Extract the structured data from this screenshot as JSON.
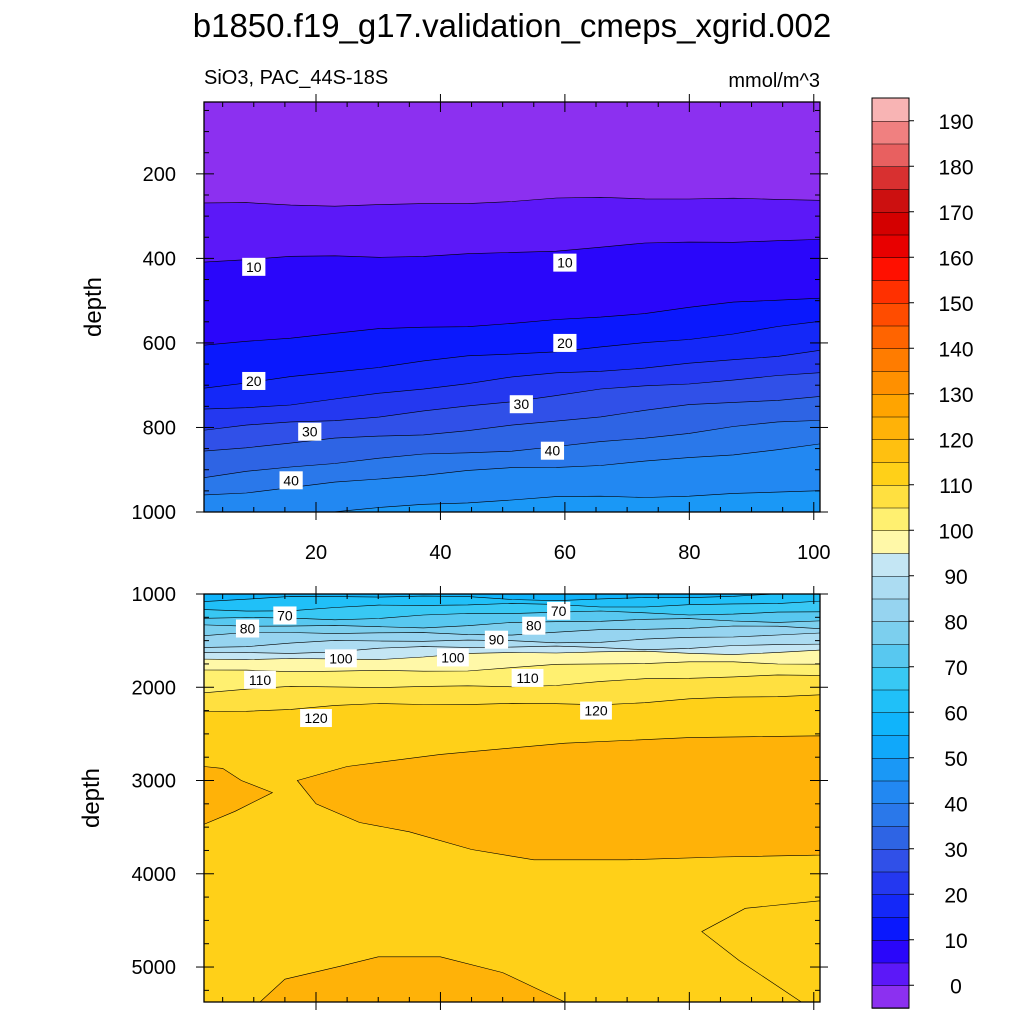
{
  "figure": {
    "title": "b1850.f19_g17.validation_cmeps_xgrid.002",
    "variable_label": "SiO3, PAC_44S-18S",
    "units_label": "mmol/m^3"
  },
  "chart_data": [
    {
      "type": "heatmap",
      "panel": "upper",
      "xlim": [
        2,
        101
      ],
      "ylim": [
        1000,
        30
      ],
      "ylabel": "depth",
      "x_ticks": [
        20,
        40,
        60,
        80,
        100
      ],
      "y_ticks": [
        200,
        400,
        600,
        800,
        1000
      ],
      "x_tick_labels": [
        "20",
        "40",
        "60",
        "80",
        "100"
      ],
      "y_tick_labels": [
        "200",
        "400",
        "600",
        "800",
        "1000"
      ],
      "contours": [
        {
          "level": 5,
          "depth_at_left": 275,
          "depth_at_right": 255
        },
        {
          "level": 10,
          "depth_at_left": 410,
          "depth_at_right": 355
        },
        {
          "level": 15,
          "depth_at_left": 605,
          "depth_at_right": 495
        },
        {
          "level": 20,
          "depth_at_left": 700,
          "depth_at_right": 555
        },
        {
          "level": 25,
          "depth_at_left": 760,
          "depth_at_right": 615
        },
        {
          "level": 30,
          "depth_at_left": 810,
          "depth_at_right": 665
        },
        {
          "level": 35,
          "depth_at_left": 860,
          "depth_at_right": 725
        },
        {
          "level": 40,
          "depth_at_left": 915,
          "depth_at_right": 785
        },
        {
          "level": 45,
          "depth_at_left": 955,
          "depth_at_right": 845
        },
        {
          "level": 50,
          "depth_at_left": 1005,
          "depth_at_right": 945
        }
      ],
      "contour_labels": [
        {
          "text": "10",
          "x": 10,
          "depth": 420
        },
        {
          "text": "10",
          "x": 60,
          "depth": 410
        },
        {
          "text": "20",
          "x": 60,
          "depth": 600
        },
        {
          "text": "20",
          "x": 10,
          "depth": 690
        },
        {
          "text": "30",
          "x": 53,
          "depth": 745
        },
        {
          "text": "30",
          "x": 19,
          "depth": 810
        },
        {
          "text": "40",
          "x": 58,
          "depth": 855
        },
        {
          "text": "40",
          "x": 16,
          "depth": 925
        }
      ]
    },
    {
      "type": "heatmap",
      "panel": "lower",
      "xlim": [
        2,
        101
      ],
      "ylim": [
        5375,
        1000
      ],
      "ylabel": "depth",
      "y_ticks": [
        1000,
        2000,
        3000,
        4000,
        5000
      ],
      "y_tick_labels": [
        "1000",
        "2000",
        "3000",
        "4000",
        "5000"
      ],
      "contours": [
        {
          "level": 65,
          "depth_at_left": 1050,
          "depth_at_right": 1030
        },
        {
          "level": 70,
          "depth_at_left": 1160,
          "depth_at_right": 1090
        },
        {
          "level": 75,
          "depth_at_left": 1260,
          "depth_at_right": 1180
        },
        {
          "level": 80,
          "depth_at_left": 1360,
          "depth_at_right": 1270
        },
        {
          "level": 85,
          "depth_at_left": 1450,
          "depth_at_right": 1360
        },
        {
          "level": 90,
          "depth_at_left": 1550,
          "depth_at_right": 1450
        },
        {
          "level": 95,
          "depth_at_left": 1620,
          "depth_at_right": 1540
        },
        {
          "level": 100,
          "depth_at_left": 1700,
          "depth_at_right": 1600
        },
        {
          "level": 105,
          "depth_at_left": 1850,
          "depth_at_right": 1720
        },
        {
          "level": 110,
          "depth_at_left": 2050,
          "depth_at_right": 1880
        },
        {
          "level": 115,
          "depth_at_left": 2250,
          "depth_at_right": 2100
        }
      ],
      "contour_labels": [
        {
          "text": "70",
          "x": 15,
          "depth": 1230
        },
        {
          "text": "80",
          "x": 9,
          "depth": 1370
        },
        {
          "text": "70",
          "x": 59,
          "depth": 1180
        },
        {
          "text": "80",
          "x": 55,
          "depth": 1340
        },
        {
          "text": "90",
          "x": 49,
          "depth": 1490
        },
        {
          "text": "100",
          "x": 24,
          "depth": 1690
        },
        {
          "text": "100",
          "x": 42,
          "depth": 1680
        },
        {
          "text": "110",
          "x": 11,
          "depth": 1920
        },
        {
          "text": "110",
          "x": 54,
          "depth": 1900
        },
        {
          "text": "120",
          "x": 20,
          "depth": 2330
        },
        {
          "text": "120",
          "x": 65,
          "depth": 2250
        }
      ],
      "regions": [
        {
          "level": 125,
          "note": "large interior band 3000-3850 m, x 17-101",
          "points": [
            [
              17,
              3000
            ],
            [
              25,
              2850
            ],
            [
              40,
              2720
            ],
            [
              60,
              2600
            ],
            [
              80,
              2540
            ],
            [
              101,
              2520
            ],
            [
              101,
              3800
            ],
            [
              85,
              3820
            ],
            [
              70,
              3850
            ],
            [
              55,
              3850
            ],
            [
              45,
              3740
            ],
            [
              35,
              3550
            ],
            [
              27,
              3450
            ],
            [
              20,
              3250
            ]
          ]
        },
        {
          "level": 125,
          "note": "left edge pocket near 3100 m",
          "points": [
            [
              2,
              2850
            ],
            [
              5,
              2870
            ],
            [
              8,
              3000
            ],
            [
              13,
              3130
            ],
            [
              7,
              3330
            ],
            [
              2,
              3470
            ]
          ]
        },
        {
          "level": 125,
          "note": "bottom pocket near 5200 m",
          "points": [
            [
              11,
              5375
            ],
            [
              15,
              5130
            ],
            [
              24,
              4990
            ],
            [
              30,
              4890
            ],
            [
              40,
              4890
            ],
            [
              50,
              5060
            ],
            [
              60,
              5375
            ]
          ]
        },
        {
          "level": 115,
          "note": "lower-right pocket near 4700 m",
          "points": [
            [
              101,
              4290
            ],
            [
              89,
              4370
            ],
            [
              82,
              4620
            ],
            [
              88,
              4930
            ],
            [
              98,
              5375
            ],
            [
              101,
              5375
            ]
          ]
        }
      ]
    },
    {
      "type": "colorbar",
      "levels": [
        0,
        10,
        20,
        30,
        40,
        50,
        60,
        70,
        80,
        90,
        100,
        110,
        120,
        130,
        140,
        150,
        160,
        170,
        180,
        190
      ],
      "labels": [
        "0",
        "10",
        "20",
        "30",
        "40",
        "50",
        "60",
        "70",
        "80",
        "90",
        "100",
        "110",
        "120",
        "130",
        "140",
        "150",
        "160",
        "170",
        "180",
        "190"
      ],
      "colors": [
        "#8c30f0",
        "#5c18f8",
        "#2a06fa",
        "#0a18fd",
        "#1428f8",
        "#2438f0",
        "#3050e8",
        "#2e64e4",
        "#2a78ea",
        "#2288f2",
        "#1a98f6",
        "#10a8fa",
        "#10b4fb",
        "#20c0f8",
        "#38c8f4",
        "#58c8f0",
        "#7ccfee",
        "#96d4f0",
        "#acdcf2",
        "#c4e6f4",
        "#fff8a8",
        "#fff070",
        "#ffe040",
        "#ffd018",
        "#ffc010",
        "#ffb208",
        "#ffa400",
        "#ff9000",
        "#ff7c00",
        "#ff6400",
        "#ff4c00",
        "#ff3000",
        "#ff1000",
        "#e80000",
        "#d40000",
        "#cc1010",
        "#d83030",
        "#e86060",
        "#f08080",
        "#f8b4b4"
      ]
    }
  ]
}
